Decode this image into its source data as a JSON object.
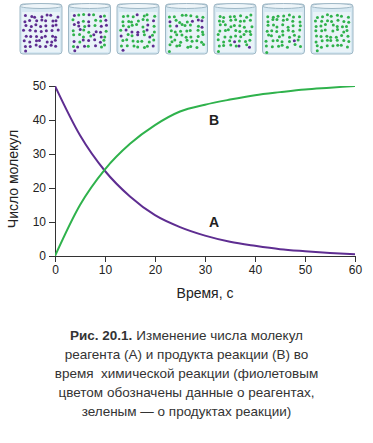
{
  "chart_data": {
    "type": "line",
    "figure_label": "Рис. 20.1.",
    "caption": [
      "Изменение числа молекул",
      "реагента (А) и продукта реакции (В) во",
      "время  химической реакции (фиолетовым",
      "цветом обозначены данные о реагентах,",
      "зеленым — о продуктах реакции)"
    ],
    "x_label": "Время, с",
    "y_label": "Число молекул",
    "x": [
      0,
      5,
      10,
      15,
      20,
      25,
      30,
      35,
      40,
      45,
      50,
      55,
      60
    ],
    "series": [
      {
        "name": "А",
        "color": "#5e2d91",
        "values": [
          50,
          35.5,
          25,
          17.5,
          12,
          8.5,
          6,
          4.2,
          3,
          2,
          1.4,
          0.9,
          0.5
        ]
      },
      {
        "name": "В",
        "color": "#2fb24c",
        "values": [
          0,
          15,
          25.5,
          33,
          38.5,
          42.5,
          44.5,
          46,
          47.3,
          48.2,
          49,
          49.5,
          50
        ]
      }
    ],
    "xlim": [
      0,
      60
    ],
    "ylim": [
      0,
      50
    ],
    "xticks": [
      0,
      10,
      20,
      30,
      40,
      50,
      60
    ],
    "yticks": [
      0,
      10,
      20,
      30,
      40,
      50
    ],
    "grid": false
  }
}
